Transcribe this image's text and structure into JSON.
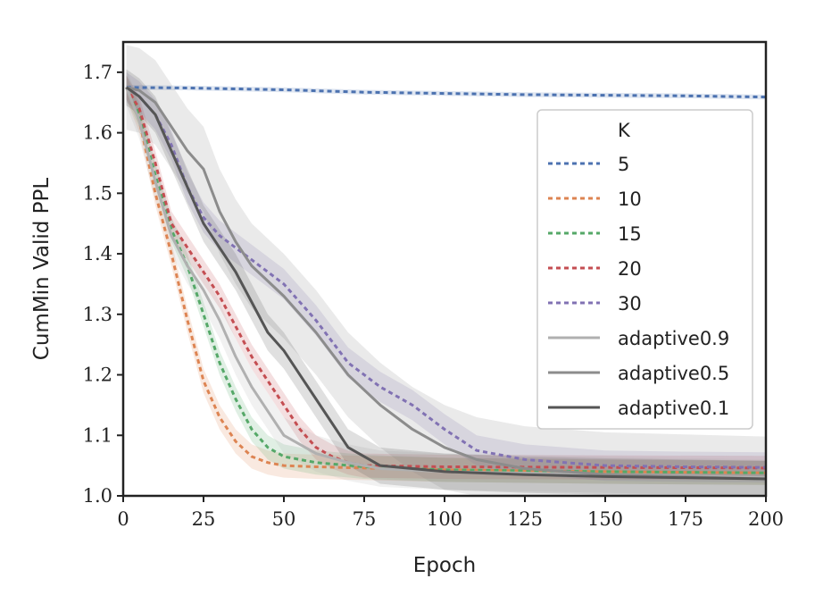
{
  "chart_data": {
    "type": "line",
    "title": "",
    "xlabel": "Epoch",
    "ylabel": "CumMin Valid PPL",
    "xlim": [
      0,
      200
    ],
    "ylim": [
      1.0,
      1.75
    ],
    "xticks": [
      "0",
      "25",
      "50",
      "75",
      "100",
      "125",
      "150",
      "175",
      "200"
    ],
    "yticks": [
      "1.0",
      "1.1",
      "1.2",
      "1.3",
      "1.4",
      "1.5",
      "1.6",
      "1.7"
    ],
    "legend": {
      "title": "K",
      "placement": "right"
    },
    "series": [
      {
        "name": "5",
        "color": "#4c72b0",
        "dash": "dotted",
        "band": 0.004,
        "x": [
          1,
          20,
          50,
          75,
          100,
          125,
          150,
          175,
          200
        ],
        "y": [
          1.675,
          1.674,
          1.671,
          1.667,
          1.665,
          1.663,
          1.662,
          1.661,
          1.659
        ]
      },
      {
        "name": "10",
        "color": "#dd8452",
        "dash": "dotted",
        "band": 0.02,
        "x": [
          1,
          5,
          10,
          15,
          20,
          25,
          30,
          35,
          40,
          45,
          50,
          60,
          75,
          100,
          150,
          200
        ],
        "y": [
          1.675,
          1.62,
          1.5,
          1.4,
          1.29,
          1.19,
          1.13,
          1.09,
          1.065,
          1.055,
          1.05,
          1.048,
          1.046,
          1.043,
          1.04,
          1.038
        ]
      },
      {
        "name": "15",
        "color": "#55a868",
        "dash": "dotted",
        "band": 0.02,
        "x": [
          1,
          5,
          10,
          15,
          20,
          25,
          30,
          35,
          40,
          45,
          50,
          60,
          75,
          100,
          150,
          200
        ],
        "y": [
          1.675,
          1.63,
          1.53,
          1.44,
          1.38,
          1.3,
          1.22,
          1.16,
          1.11,
          1.08,
          1.065,
          1.055,
          1.048,
          1.043,
          1.04,
          1.038
        ]
      },
      {
        "name": "20",
        "color": "#c44e52",
        "dash": "dotted",
        "band": 0.02,
        "x": [
          1,
          5,
          10,
          15,
          20,
          25,
          30,
          35,
          40,
          45,
          50,
          55,
          60,
          65,
          70,
          75,
          100,
          150,
          200
        ],
        "y": [
          1.675,
          1.64,
          1.55,
          1.45,
          1.41,
          1.37,
          1.33,
          1.28,
          1.23,
          1.19,
          1.15,
          1.11,
          1.08,
          1.065,
          1.055,
          1.05,
          1.048,
          1.047,
          1.046
        ]
      },
      {
        "name": "30",
        "color": "#8172b3",
        "dash": "dotted",
        "band": 0.025,
        "x": [
          1,
          5,
          10,
          15,
          20,
          25,
          30,
          40,
          50,
          60,
          70,
          80,
          90,
          100,
          110,
          125,
          150,
          175,
          200
        ],
        "y": [
          1.675,
          1.66,
          1.63,
          1.58,
          1.51,
          1.46,
          1.43,
          1.39,
          1.35,
          1.29,
          1.22,
          1.18,
          1.15,
          1.11,
          1.075,
          1.06,
          1.05,
          1.048,
          1.047
        ]
      },
      {
        "name": "adaptive0.9",
        "color": "#b0b0b0",
        "dash": "solid",
        "band": 0.03,
        "x": [
          1,
          5,
          10,
          15,
          20,
          25,
          30,
          35,
          40,
          45,
          50,
          60,
          70,
          80,
          100,
          150,
          200
        ],
        "y": [
          1.675,
          1.62,
          1.52,
          1.43,
          1.38,
          1.34,
          1.29,
          1.23,
          1.18,
          1.14,
          1.1,
          1.07,
          1.055,
          1.045,
          1.04,
          1.035,
          1.03
        ]
      },
      {
        "name": "adaptive0.5",
        "color": "#8c8c8c",
        "dash": "solid",
        "band": 0.07,
        "x": [
          1,
          5,
          10,
          15,
          20,
          25,
          30,
          35,
          40,
          50,
          60,
          70,
          80,
          90,
          100,
          110,
          125,
          150,
          200
        ],
        "y": [
          1.675,
          1.67,
          1.65,
          1.61,
          1.57,
          1.54,
          1.47,
          1.42,
          1.38,
          1.33,
          1.27,
          1.2,
          1.15,
          1.11,
          1.08,
          1.06,
          1.045,
          1.035,
          1.028
        ]
      },
      {
        "name": "adaptive0.1",
        "color": "#555555",
        "dash": "solid",
        "band": 0.03,
        "x": [
          1,
          5,
          10,
          15,
          20,
          25,
          30,
          35,
          40,
          45,
          50,
          55,
          60,
          70,
          80,
          100,
          125,
          150,
          175,
          200
        ],
        "y": [
          1.675,
          1.66,
          1.63,
          1.57,
          1.51,
          1.45,
          1.41,
          1.37,
          1.32,
          1.27,
          1.24,
          1.2,
          1.16,
          1.08,
          1.05,
          1.04,
          1.035,
          1.032,
          1.03,
          1.028
        ]
      }
    ]
  }
}
